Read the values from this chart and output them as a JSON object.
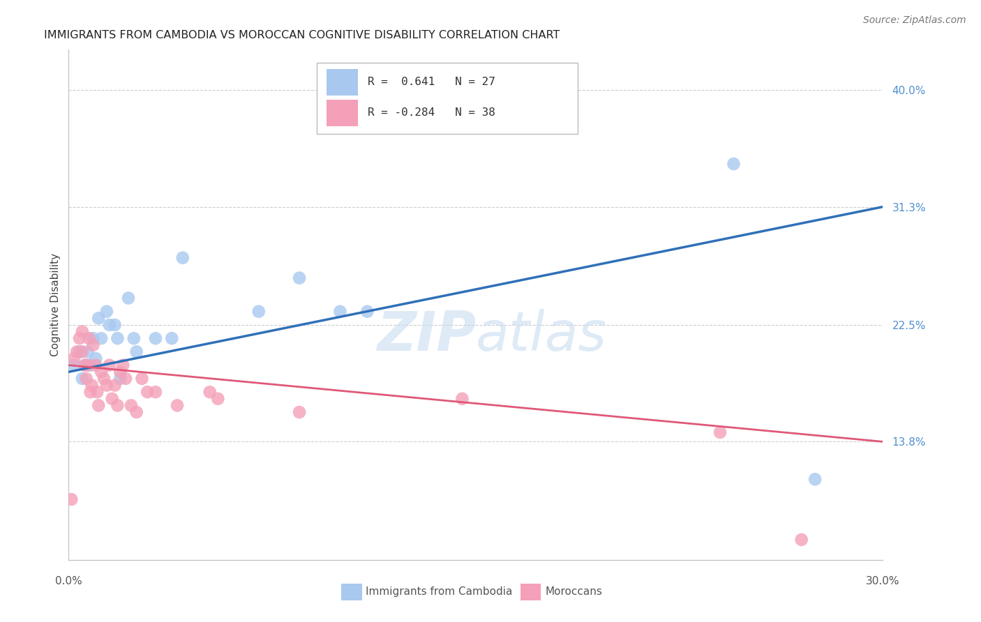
{
  "title": "IMMIGRANTS FROM CAMBODIA VS MOROCCAN COGNITIVE DISABILITY CORRELATION CHART",
  "source": "Source: ZipAtlas.com",
  "ylabel": "Cognitive Disability",
  "yticks": [
    13.8,
    22.5,
    31.3,
    40.0
  ],
  "xlim": [
    0.0,
    30.0
  ],
  "ylim": [
    5.0,
    43.0
  ],
  "blue_R": "0.641",
  "blue_N": "27",
  "pink_R": "-0.284",
  "pink_N": "38",
  "blue_color": "#A8C8F0",
  "pink_color": "#F4A0B8",
  "blue_line_color": "#3070B8",
  "pink_line_color": "#E05878",
  "ytick_color": "#5090D0",
  "watermark_color": "#C8DCF0",
  "blue_points_x": [
    0.2,
    0.4,
    0.5,
    0.6,
    0.7,
    0.8,
    0.9,
    1.0,
    1.1,
    1.2,
    1.4,
    1.5,
    1.7,
    1.8,
    1.9,
    2.2,
    2.4,
    2.5,
    3.2,
    3.8,
    4.2,
    7.0,
    8.5,
    10.0,
    11.0,
    24.5,
    27.5
  ],
  "blue_points_y": [
    19.5,
    20.5,
    18.5,
    19.5,
    20.5,
    19.5,
    21.5,
    20.0,
    23.0,
    21.5,
    23.5,
    22.5,
    22.5,
    21.5,
    18.5,
    24.5,
    21.5,
    20.5,
    21.5,
    21.5,
    27.5,
    23.5,
    26.0,
    23.5,
    23.5,
    34.5,
    11.0
  ],
  "pink_points_x": [
    0.1,
    0.2,
    0.3,
    0.4,
    0.5,
    0.5,
    0.6,
    0.65,
    0.7,
    0.75,
    0.8,
    0.85,
    0.9,
    1.0,
    1.05,
    1.1,
    1.2,
    1.3,
    1.4,
    1.5,
    1.6,
    1.7,
    1.8,
    1.9,
    2.0,
    2.1,
    2.3,
    2.5,
    2.7,
    2.9,
    3.2,
    4.0,
    5.2,
    5.5,
    8.5,
    14.5,
    24.0,
    27.0
  ],
  "pink_points_y": [
    9.5,
    20.0,
    20.5,
    21.5,
    22.0,
    20.5,
    19.5,
    18.5,
    19.5,
    21.5,
    17.5,
    18.0,
    21.0,
    19.5,
    17.5,
    16.5,
    19.0,
    18.5,
    18.0,
    19.5,
    17.0,
    18.0,
    16.5,
    19.0,
    19.5,
    18.5,
    16.5,
    16.0,
    18.5,
    17.5,
    17.5,
    16.5,
    17.5,
    17.0,
    16.0,
    17.0,
    14.5,
    6.5
  ],
  "blue_line_x0": 0.0,
  "blue_line_y0": 19.0,
  "blue_line_x1": 30.0,
  "blue_line_y1": 31.3,
  "pink_line_x0": 0.0,
  "pink_line_y0": 19.5,
  "pink_line_x1": 30.0,
  "pink_line_y1": 13.8
}
